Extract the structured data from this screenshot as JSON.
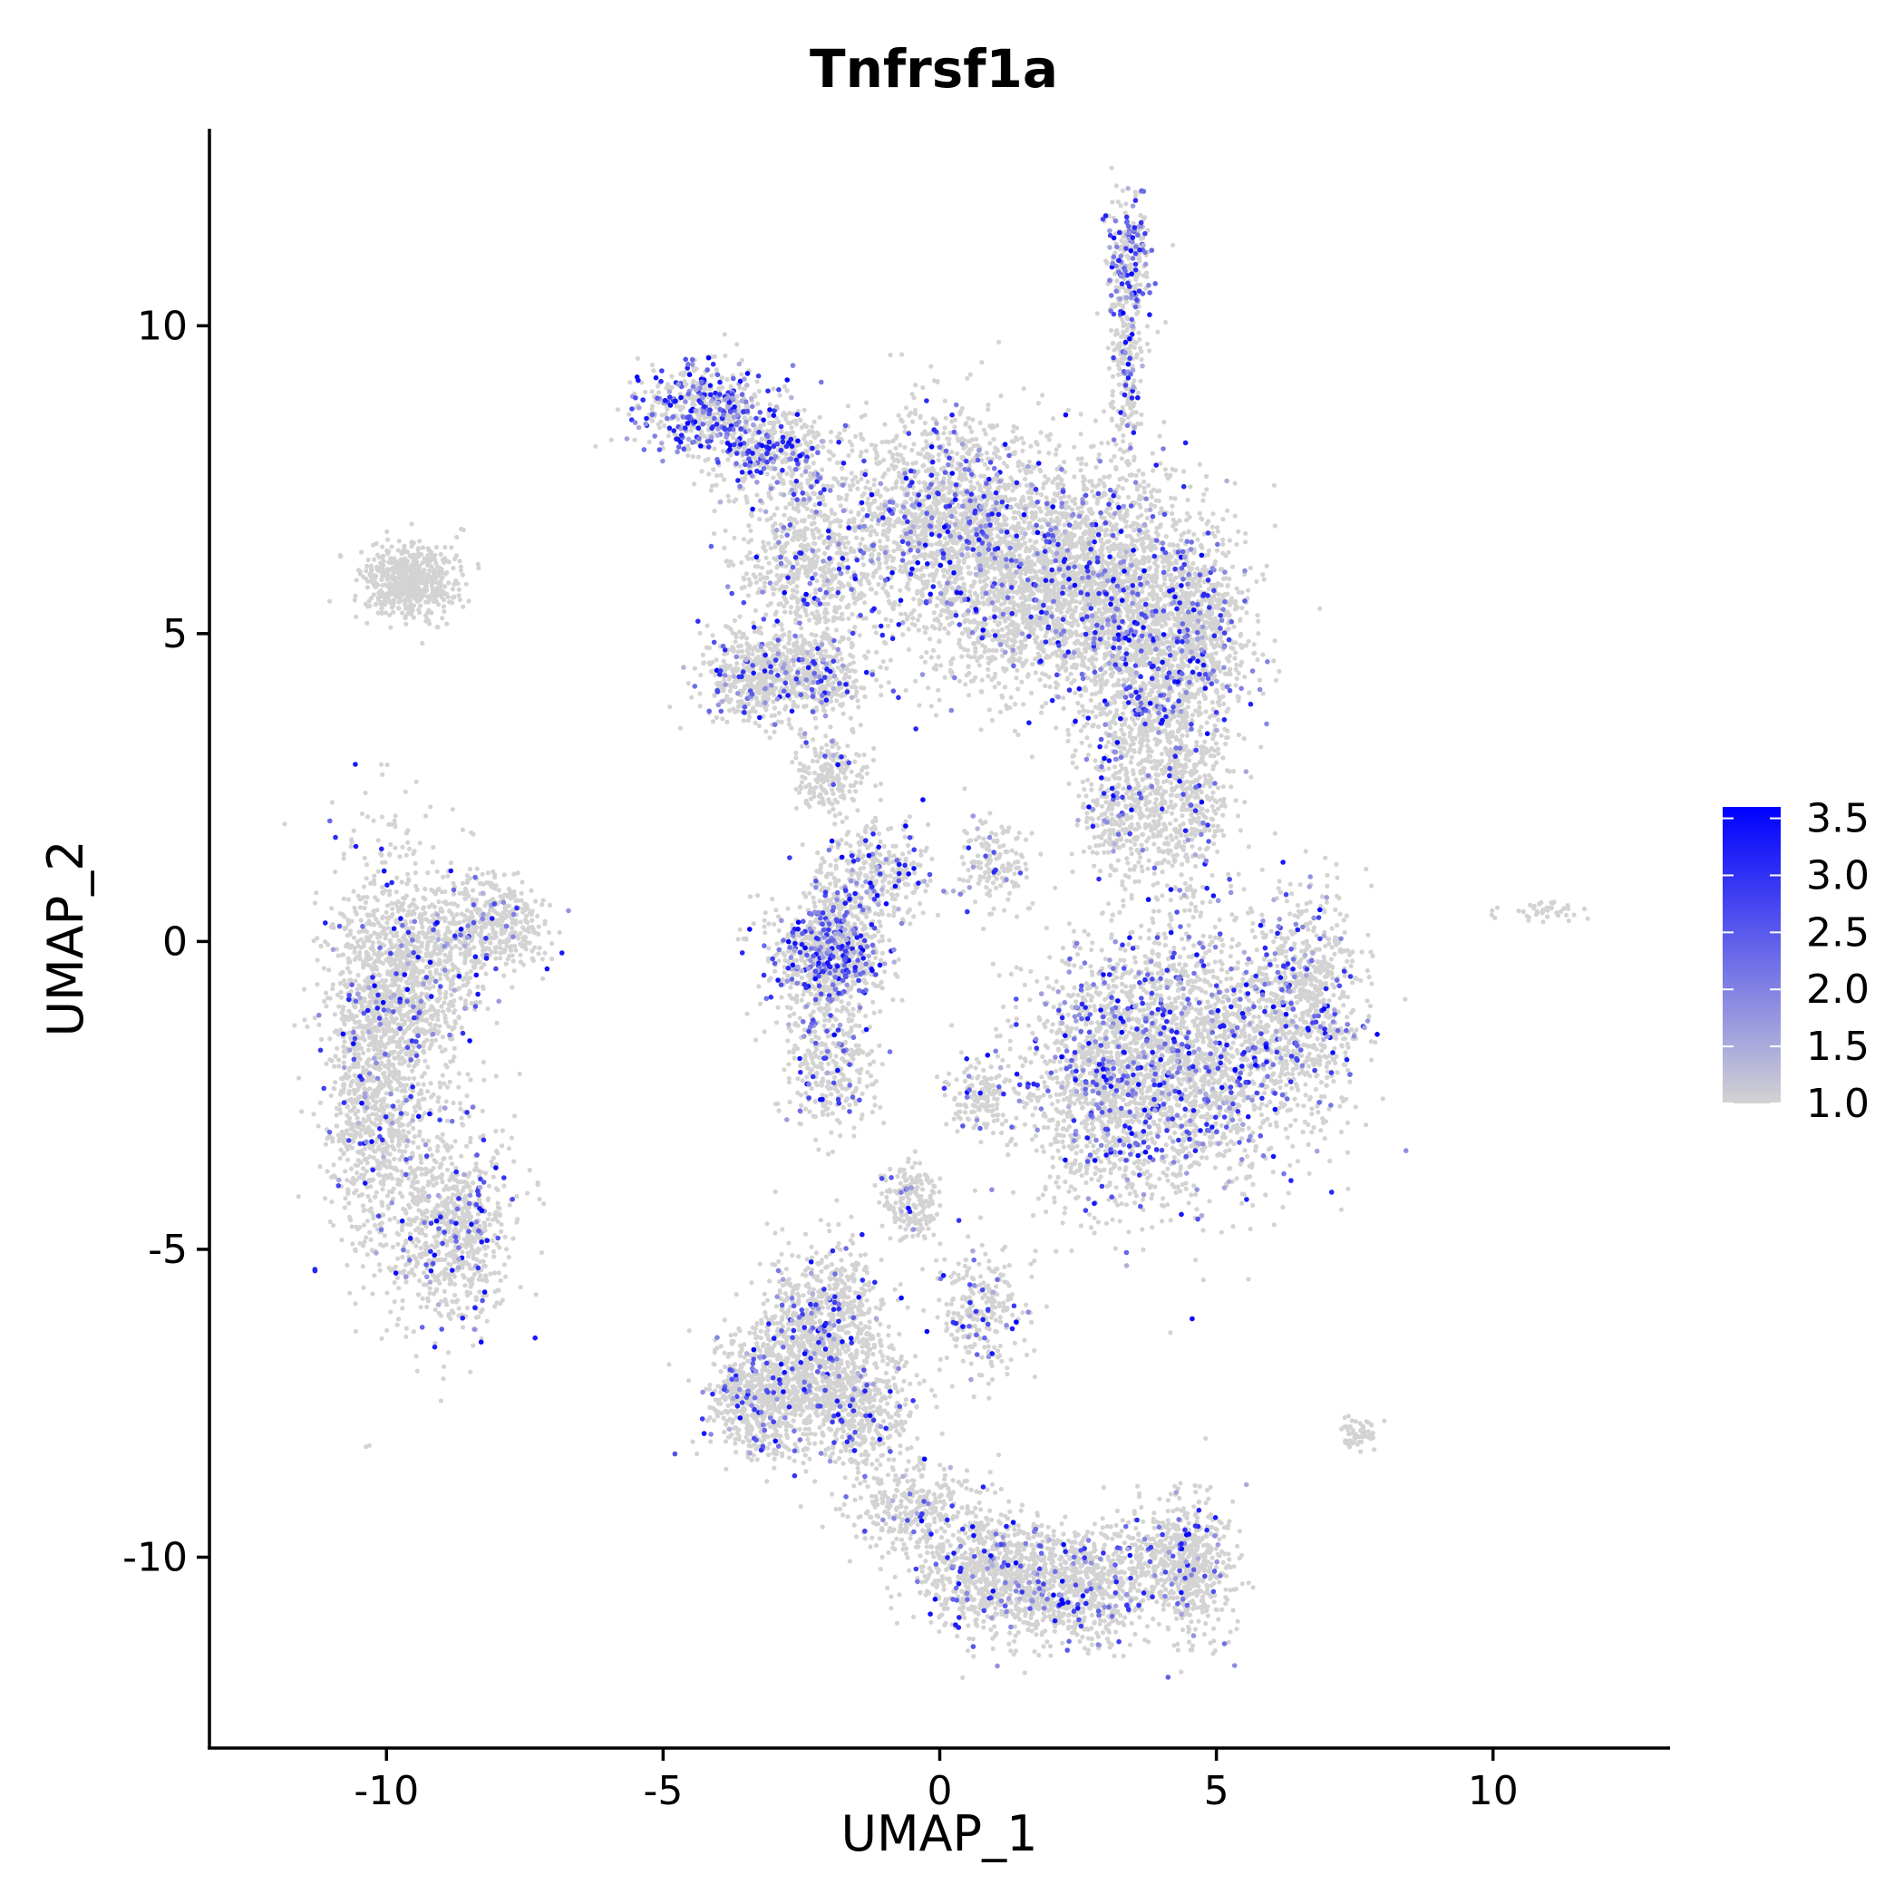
{
  "chart_data": {
    "type": "scatter",
    "title": "Tnfrsf1a",
    "xlabel": "UMAP_1",
    "ylabel": "UMAP_2",
    "xlim": [
      -13.2,
      13.2
    ],
    "ylim": [
      -13.1,
      13.2
    ],
    "x_ticks": [
      -10,
      -5,
      0,
      5,
      10
    ],
    "x_tick_labels": [
      "-10",
      "-5",
      "0",
      "5",
      "10"
    ],
    "y_ticks": [
      -10,
      -5,
      0,
      5,
      10
    ],
    "y_tick_labels": [
      "-10",
      "-5",
      "0",
      "5",
      "10"
    ],
    "grid": false,
    "legend": {
      "placement": "right",
      "type": "colorbar",
      "min": 1.0,
      "max": 3.6,
      "breaks": [
        1.0,
        1.5,
        2.0,
        2.5,
        3.0,
        3.5
      ],
      "break_labels": [
        "1.0",
        "1.5",
        "2.0",
        "2.5",
        "3.0",
        "3.5"
      ],
      "low_color": "#d3d3d3",
      "high_color": "#0000ff"
    },
    "clusters": [
      {
        "cx": -9.6,
        "cy": 5.85,
        "sx": 0.4,
        "sy": 0.3,
        "n": 600,
        "expr": 0.0
      },
      {
        "cx": -10.2,
        "cy": -1.8,
        "sx": 0.45,
        "sy": 1.6,
        "n": 1400,
        "expr": 0.08
      },
      {
        "cx": -9.3,
        "cy": -0.5,
        "sx": 0.5,
        "sy": 0.9,
        "n": 700,
        "expr": 0.08
      },
      {
        "cx": -8.1,
        "cy": 0.3,
        "sx": 0.45,
        "sy": 0.4,
        "n": 400,
        "expr": 0.06
      },
      {
        "cx": -8.8,
        "cy": -4.6,
        "sx": 0.55,
        "sy": 0.8,
        "n": 800,
        "expr": 0.1
      },
      {
        "cx": -4.3,
        "cy": 8.7,
        "sx": 0.6,
        "sy": 0.35,
        "n": 500,
        "expr": 0.4
      },
      {
        "cx": -3.0,
        "cy": 8.0,
        "sx": 0.6,
        "sy": 0.4,
        "n": 400,
        "expr": 0.25
      },
      {
        "cx": -2.4,
        "cy": 6.1,
        "sx": 0.65,
        "sy": 0.8,
        "n": 700,
        "expr": 0.12
      },
      {
        "cx": -3.4,
        "cy": 4.3,
        "sx": 0.45,
        "sy": 0.35,
        "n": 400,
        "expr": 0.1
      },
      {
        "cx": -2.2,
        "cy": 4.3,
        "sx": 0.5,
        "sy": 0.35,
        "n": 400,
        "expr": 0.12
      },
      {
        "cx": -2.0,
        "cy": 2.7,
        "sx": 0.3,
        "sy": 0.3,
        "n": 200,
        "expr": 0.08
      },
      {
        "cx": 0.2,
        "cy": 7.0,
        "sx": 1.0,
        "sy": 0.8,
        "n": 1400,
        "expr": 0.12
      },
      {
        "cx": 1.4,
        "cy": 5.6,
        "sx": 1.0,
        "sy": 0.8,
        "n": 1300,
        "expr": 0.12
      },
      {
        "cx": 2.9,
        "cy": 6.3,
        "sx": 0.8,
        "sy": 0.8,
        "n": 1000,
        "expr": 0.12
      },
      {
        "cx": 3.7,
        "cy": 4.4,
        "sx": 0.8,
        "sy": 0.9,
        "n": 1200,
        "expr": 0.12
      },
      {
        "cx": 4.6,
        "cy": 5.3,
        "sx": 0.55,
        "sy": 0.8,
        "n": 700,
        "expr": 0.1
      },
      {
        "cx": 4.4,
        "cy": 2.4,
        "sx": 0.45,
        "sy": 0.9,
        "n": 500,
        "expr": 0.1
      },
      {
        "cx": 3.3,
        "cy": 2.1,
        "sx": 0.4,
        "sy": 0.6,
        "n": 300,
        "expr": 0.1
      },
      {
        "cx": 3.45,
        "cy": 11.1,
        "sx": 0.2,
        "sy": 0.55,
        "n": 250,
        "expr": 0.35
      },
      {
        "cx": 3.35,
        "cy": 9.3,
        "sx": 0.15,
        "sy": 0.8,
        "n": 200,
        "expr": 0.2
      },
      {
        "cx": -1.8,
        "cy": 0.2,
        "sx": 0.3,
        "sy": 0.6,
        "n": 350,
        "expr": 0.25
      },
      {
        "cx": -2.1,
        "cy": -0.3,
        "sx": 0.55,
        "sy": 0.5,
        "n": 600,
        "expr": 0.25
      },
      {
        "cx": -2.0,
        "cy": -2.1,
        "sx": 0.4,
        "sy": 0.5,
        "n": 300,
        "expr": 0.12
      },
      {
        "cx": -1.0,
        "cy": 1.2,
        "sx": 0.5,
        "sy": 0.4,
        "n": 250,
        "expr": 0.15
      },
      {
        "cx": 1.0,
        "cy": 1.2,
        "sx": 0.3,
        "sy": 0.4,
        "n": 150,
        "expr": 0.1
      },
      {
        "cx": 0.7,
        "cy": -2.5,
        "sx": 0.3,
        "sy": 0.3,
        "n": 150,
        "expr": 0.05
      },
      {
        "cx": 4.5,
        "cy": -1.9,
        "sx": 1.1,
        "sy": 1.1,
        "n": 2000,
        "expr": 0.18
      },
      {
        "cx": 3.0,
        "cy": -2.2,
        "sx": 0.8,
        "sy": 1.0,
        "n": 1000,
        "expr": 0.15
      },
      {
        "cx": 6.6,
        "cy": -1.0,
        "sx": 0.5,
        "sy": 0.9,
        "n": 700,
        "expr": 0.15
      },
      {
        "cx": -3.2,
        "cy": -7.4,
        "sx": 0.5,
        "sy": 0.5,
        "n": 700,
        "expr": 0.08
      },
      {
        "cx": -2.1,
        "cy": -6.3,
        "sx": 0.55,
        "sy": 0.7,
        "n": 900,
        "expr": 0.08
      },
      {
        "cx": -1.5,
        "cy": -7.6,
        "sx": 0.5,
        "sy": 0.5,
        "n": 500,
        "expr": 0.08
      },
      {
        "cx": -0.5,
        "cy": -4.2,
        "sx": 0.25,
        "sy": 0.3,
        "n": 200,
        "expr": 0.05
      },
      {
        "cx": 0.7,
        "cy": -6.0,
        "sx": 0.4,
        "sy": 0.5,
        "n": 250,
        "expr": 0.12
      },
      {
        "cx": -0.5,
        "cy": -9.2,
        "sx": 0.6,
        "sy": 0.4,
        "n": 350,
        "expr": 0.06
      },
      {
        "cx": 1.0,
        "cy": -10.3,
        "sx": 0.7,
        "sy": 0.5,
        "n": 700,
        "expr": 0.1
      },
      {
        "cx": 2.5,
        "cy": -10.5,
        "sx": 0.7,
        "sy": 0.45,
        "n": 700,
        "expr": 0.1
      },
      {
        "cx": 4.6,
        "cy": -10.2,
        "sx": 0.35,
        "sy": 0.6,
        "n": 450,
        "expr": 0.08
      },
      {
        "cx": 3.8,
        "cy": -9.9,
        "sx": 0.4,
        "sy": 0.4,
        "n": 200,
        "expr": 0.08
      },
      {
        "cx": 7.6,
        "cy": -8.0,
        "sx": 0.2,
        "sy": 0.12,
        "n": 60,
        "expr": 0.0
      },
      {
        "cx": 10.8,
        "cy": 0.5,
        "sx": 0.35,
        "sy": 0.08,
        "n": 45,
        "expr": 0.0
      }
    ]
  }
}
